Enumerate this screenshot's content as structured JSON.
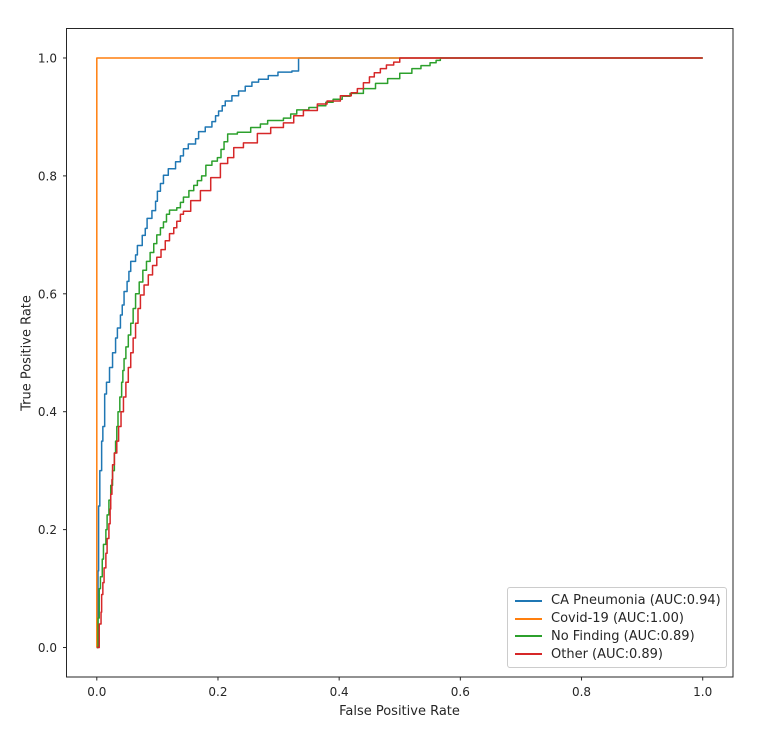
{
  "chart_data": {
    "type": "line",
    "subtype": "roc-curve",
    "title": "",
    "xlabel": "False Positive Rate",
    "ylabel": "True Positive Rate",
    "xlim": [
      -0.05,
      1.05
    ],
    "ylim": [
      -0.05,
      1.05
    ],
    "grid": false,
    "legend_position": "lower right",
    "background_color": "#ffffff",
    "spine_color": "#262626",
    "tick_label_color": "#262626",
    "legend_border_color": "#cccccc",
    "x_ticks": [
      {
        "value": 0.0,
        "label": "0.0"
      },
      {
        "value": 0.2,
        "label": "0.2"
      },
      {
        "value": 0.4,
        "label": "0.4"
      },
      {
        "value": 0.6,
        "label": "0.6"
      },
      {
        "value": 0.8,
        "label": "0.8"
      },
      {
        "value": 1.0,
        "label": "1.0"
      }
    ],
    "y_ticks": [
      {
        "value": 0.0,
        "label": "0.0"
      },
      {
        "value": 0.2,
        "label": "0.2"
      },
      {
        "value": 0.4,
        "label": "0.4"
      },
      {
        "value": 0.6,
        "label": "0.6"
      },
      {
        "value": 0.8,
        "label": "0.8"
      },
      {
        "value": 1.0,
        "label": "1.0"
      }
    ],
    "series": [
      {
        "name": "CA Pneumonia (AUC:0.94)",
        "label": "CA Pneumonia",
        "auc": "0.94",
        "color": "#1f77b4",
        "slug": "ca-pneumonia",
        "points": [
          [
            0,
            0
          ],
          [
            0.002,
            0.06
          ],
          [
            0.002,
            0.13
          ],
          [
            0.003,
            0.18
          ],
          [
            0.003,
            0.24
          ],
          [
            0.005,
            0.27
          ],
          [
            0.005,
            0.3
          ],
          [
            0.008,
            0.32
          ],
          [
            0.008,
            0.35
          ],
          [
            0.01,
            0.375
          ],
          [
            0.013,
            0.4
          ],
          [
            0.013,
            0.43
          ],
          [
            0.016,
            0.45
          ],
          [
            0.021,
            0.475
          ],
          [
            0.026,
            0.5
          ],
          [
            0.031,
            0.525
          ],
          [
            0.034,
            0.542
          ],
          [
            0.039,
            0.564
          ],
          [
            0.042,
            0.581
          ],
          [
            0.045,
            0.604
          ],
          [
            0.05,
            0.621
          ],
          [
            0.053,
            0.638
          ],
          [
            0.056,
            0.655
          ],
          [
            0.064,
            0.666
          ],
          [
            0.067,
            0.682
          ],
          [
            0.075,
            0.699
          ],
          [
            0.08,
            0.711
          ],
          [
            0.083,
            0.728
          ],
          [
            0.091,
            0.741
          ],
          [
            0.097,
            0.757
          ],
          [
            0.1,
            0.774
          ],
          [
            0.105,
            0.787
          ],
          [
            0.11,
            0.801
          ],
          [
            0.118,
            0.812
          ],
          [
            0.13,
            0.824
          ],
          [
            0.138,
            0.834
          ],
          [
            0.143,
            0.846
          ],
          [
            0.151,
            0.854
          ],
          [
            0.163,
            0.863
          ],
          [
            0.168,
            0.875
          ],
          [
            0.179,
            0.883
          ],
          [
            0.19,
            0.892
          ],
          [
            0.196,
            0.902
          ],
          [
            0.201,
            0.91
          ],
          [
            0.207,
            0.919
          ],
          [
            0.212,
            0.927
          ],
          [
            0.223,
            0.936
          ],
          [
            0.234,
            0.944
          ],
          [
            0.245,
            0.952
          ],
          [
            0.256,
            0.959
          ],
          [
            0.267,
            0.964
          ],
          [
            0.283,
            0.97
          ],
          [
            0.299,
            0.976
          ],
          [
            0.322,
            0.978
          ],
          [
            0.333,
            1.0
          ],
          [
            1,
            1
          ]
        ]
      },
      {
        "name": "Covid-19 (AUC:1.00)",
        "label": "Covid-19",
        "auc": "1.00",
        "color": "#ff7f0e",
        "slug": "covid-19",
        "points": [
          [
            0,
            0
          ],
          [
            0,
            1
          ],
          [
            1,
            1
          ]
        ]
      },
      {
        "name": "No Finding (AUC:0.89)",
        "label": "No Finding",
        "auc": "0.89",
        "color": "#2ca02c",
        "slug": "no-finding",
        "points": [
          [
            0,
            0
          ],
          [
            0.002,
            0.05
          ],
          [
            0.004,
            0.1
          ],
          [
            0.006,
            0.12
          ],
          [
            0.009,
            0.15
          ],
          [
            0.011,
            0.175
          ],
          [
            0.015,
            0.2
          ],
          [
            0.017,
            0.225
          ],
          [
            0.02,
            0.25
          ],
          [
            0.023,
            0.275
          ],
          [
            0.026,
            0.3
          ],
          [
            0.029,
            0.33
          ],
          [
            0.031,
            0.35
          ],
          [
            0.033,
            0.375
          ],
          [
            0.035,
            0.4
          ],
          [
            0.038,
            0.425
          ],
          [
            0.041,
            0.45
          ],
          [
            0.043,
            0.47
          ],
          [
            0.045,
            0.49
          ],
          [
            0.048,
            0.51
          ],
          [
            0.052,
            0.53
          ],
          [
            0.056,
            0.55
          ],
          [
            0.06,
            0.575
          ],
          [
            0.064,
            0.6
          ],
          [
            0.07,
            0.62
          ],
          [
            0.076,
            0.64
          ],
          [
            0.082,
            0.655
          ],
          [
            0.088,
            0.67
          ],
          [
            0.094,
            0.685
          ],
          [
            0.099,
            0.7
          ],
          [
            0.105,
            0.712
          ],
          [
            0.11,
            0.722
          ],
          [
            0.115,
            0.735
          ],
          [
            0.12,
            0.742
          ],
          [
            0.132,
            0.746
          ],
          [
            0.138,
            0.755
          ],
          [
            0.143,
            0.764
          ],
          [
            0.152,
            0.775
          ],
          [
            0.16,
            0.784
          ],
          [
            0.166,
            0.792
          ],
          [
            0.173,
            0.8
          ],
          [
            0.18,
            0.818
          ],
          [
            0.19,
            0.825
          ],
          [
            0.199,
            0.831
          ],
          [
            0.205,
            0.845
          ],
          [
            0.21,
            0.858
          ],
          [
            0.216,
            0.871
          ],
          [
            0.232,
            0.874
          ],
          [
            0.254,
            0.882
          ],
          [
            0.27,
            0.888
          ],
          [
            0.282,
            0.894
          ],
          [
            0.308,
            0.898
          ],
          [
            0.32,
            0.905
          ],
          [
            0.33,
            0.912
          ],
          [
            0.35,
            0.916
          ],
          [
            0.364,
            0.919
          ],
          [
            0.378,
            0.925
          ],
          [
            0.39,
            0.93
          ],
          [
            0.405,
            0.935
          ],
          [
            0.418,
            0.94
          ],
          [
            0.44,
            0.948
          ],
          [
            0.46,
            0.957
          ],
          [
            0.48,
            0.965
          ],
          [
            0.5,
            0.974
          ],
          [
            0.52,
            0.982
          ],
          [
            0.535,
            0.987
          ],
          [
            0.55,
            0.992
          ],
          [
            0.56,
            0.996
          ],
          [
            0.567,
            1.0
          ],
          [
            1,
            1
          ]
        ]
      },
      {
        "name": "Other (AUC:0.89)",
        "label": "Other",
        "auc": "0.89",
        "color": "#d62728",
        "slug": "other",
        "points": [
          [
            0,
            0
          ],
          [
            0.004,
            0.04
          ],
          [
            0.007,
            0.06
          ],
          [
            0.008,
            0.09
          ],
          [
            0.01,
            0.11
          ],
          [
            0.012,
            0.135
          ],
          [
            0.015,
            0.16
          ],
          [
            0.017,
            0.185
          ],
          [
            0.02,
            0.21
          ],
          [
            0.022,
            0.235
          ],
          [
            0.023,
            0.26
          ],
          [
            0.025,
            0.285
          ],
          [
            0.026,
            0.31
          ],
          [
            0.029,
            0.33
          ],
          [
            0.033,
            0.35
          ],
          [
            0.036,
            0.375
          ],
          [
            0.04,
            0.4
          ],
          [
            0.044,
            0.425
          ],
          [
            0.048,
            0.45
          ],
          [
            0.052,
            0.475
          ],
          [
            0.056,
            0.5
          ],
          [
            0.06,
            0.525
          ],
          [
            0.064,
            0.55
          ],
          [
            0.068,
            0.575
          ],
          [
            0.072,
            0.598
          ],
          [
            0.078,
            0.615
          ],
          [
            0.085,
            0.632
          ],
          [
            0.092,
            0.648
          ],
          [
            0.099,
            0.662
          ],
          [
            0.106,
            0.675
          ],
          [
            0.113,
            0.69
          ],
          [
            0.12,
            0.702
          ],
          [
            0.127,
            0.712
          ],
          [
            0.132,
            0.723
          ],
          [
            0.138,
            0.735
          ],
          [
            0.143,
            0.74
          ],
          [
            0.155,
            0.758
          ],
          [
            0.171,
            0.775
          ],
          [
            0.188,
            0.797
          ],
          [
            0.204,
            0.821
          ],
          [
            0.216,
            0.831
          ],
          [
            0.226,
            0.848
          ],
          [
            0.242,
            0.856
          ],
          [
            0.265,
            0.872
          ],
          [
            0.287,
            0.882
          ],
          [
            0.308,
            0.89
          ],
          [
            0.325,
            0.902
          ],
          [
            0.341,
            0.911
          ],
          [
            0.364,
            0.922
          ],
          [
            0.38,
            0.927
          ],
          [
            0.402,
            0.936
          ],
          [
            0.42,
            0.941
          ],
          [
            0.43,
            0.948
          ],
          [
            0.44,
            0.958
          ],
          [
            0.45,
            0.968
          ],
          [
            0.458,
            0.975
          ],
          [
            0.468,
            0.982
          ],
          [
            0.478,
            0.988
          ],
          [
            0.49,
            0.993
          ],
          [
            0.5,
            1.0
          ],
          [
            1,
            1
          ]
        ]
      }
    ]
  }
}
